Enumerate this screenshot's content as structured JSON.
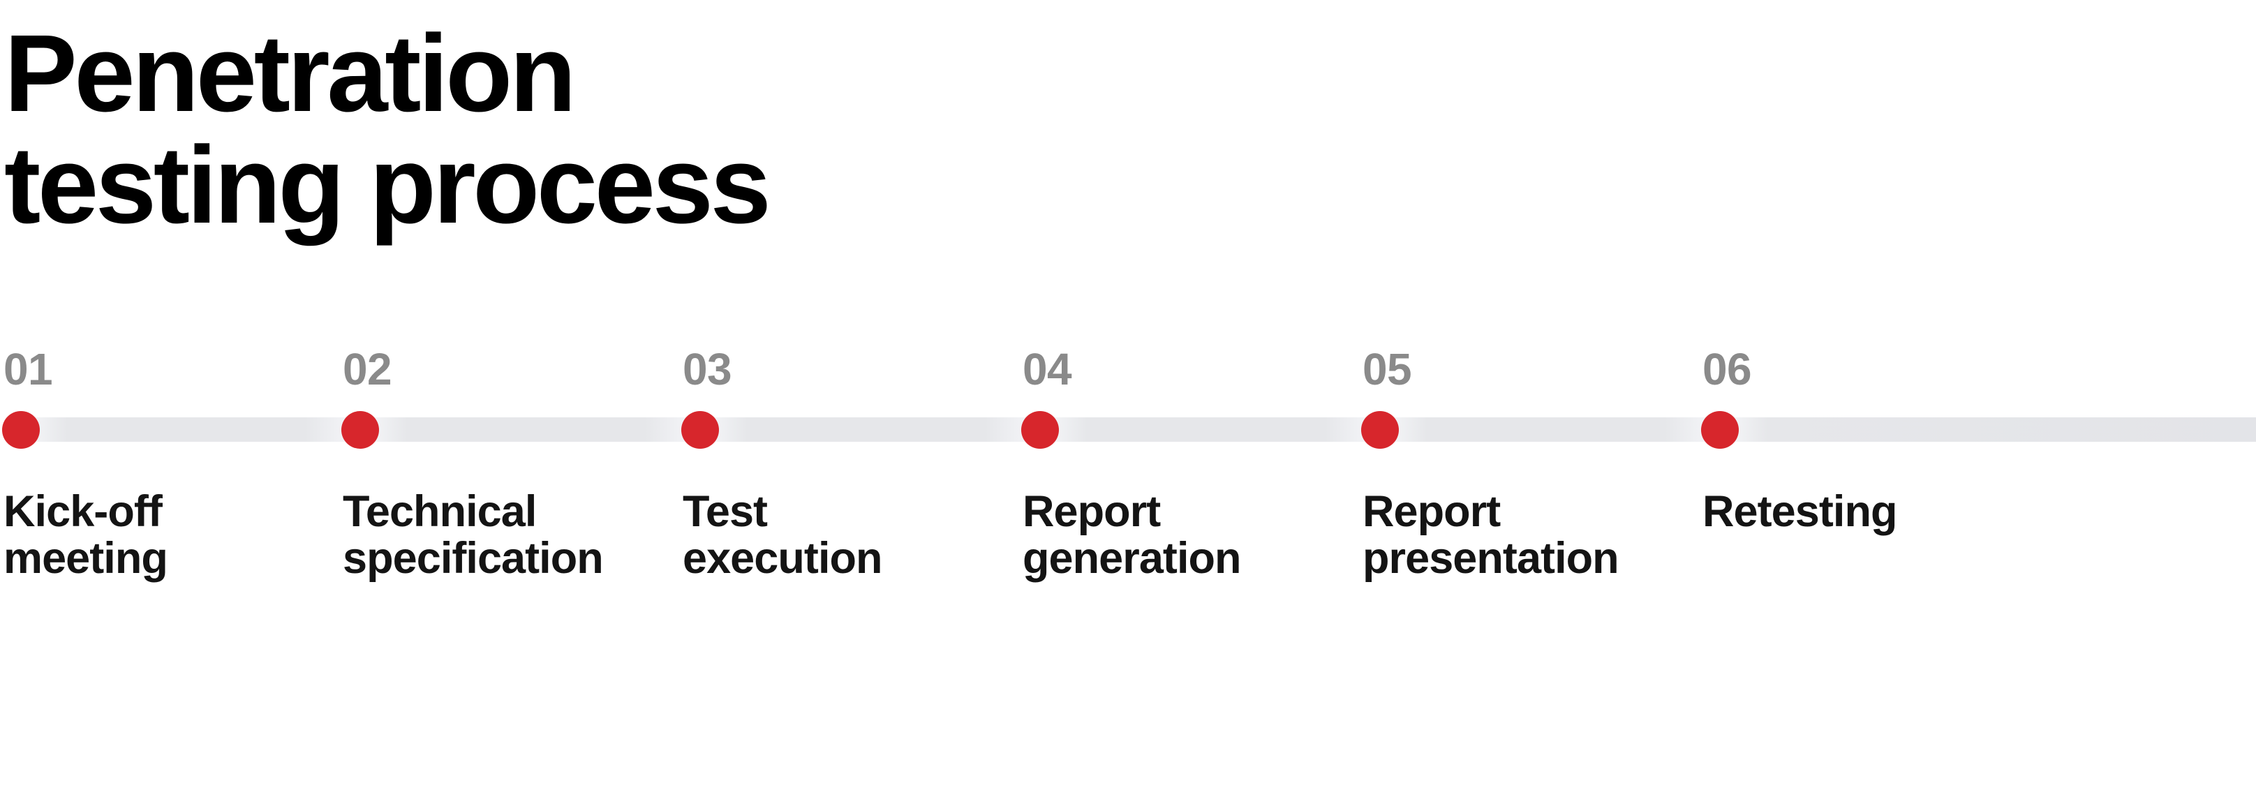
{
  "title": "Penetration\ntesting process",
  "colors": {
    "accent_red": "#d7262c",
    "number_gray": "#8a8a8a",
    "text_black": "#141414",
    "title_black": "#000000",
    "line_gray": "#e6e7ea",
    "line_highlight": "#f8f9fb",
    "background": "#ffffff"
  },
  "steps": [
    {
      "number": "01",
      "label": "Kick-off\nmeeting"
    },
    {
      "number": "02",
      "label": "Technical\nspecification"
    },
    {
      "number": "03",
      "label": "Test\nexecution"
    },
    {
      "number": "04",
      "label": "Report\ngeneration"
    },
    {
      "number": "05",
      "label": "Report\npresentation"
    },
    {
      "number": "06",
      "label": "Retesting"
    }
  ]
}
